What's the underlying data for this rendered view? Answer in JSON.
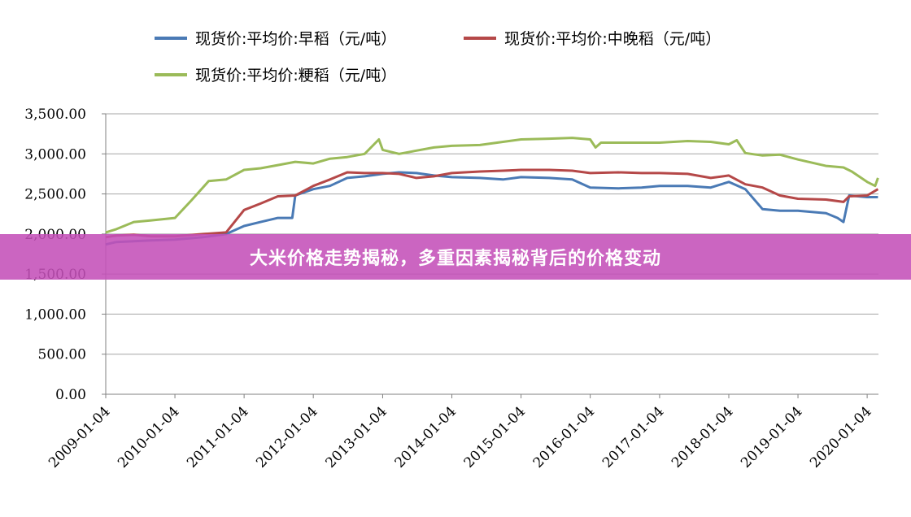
{
  "banner": {
    "text": "大米价格走势揭秘，多重因素揭秘背后的价格变动",
    "color": "#c450b8"
  },
  "chart_data": {
    "type": "line",
    "title": "",
    "xlabel": "",
    "ylabel": "",
    "ylim": [
      0,
      3500
    ],
    "grid": true,
    "legend_position": "top",
    "y_ticks": [
      "0.00",
      "500.00",
      "1,000.00",
      "1,500.00",
      "2,000.00",
      "2,500.00",
      "3,000.00",
      "3,500.00"
    ],
    "x_ticks": [
      "2009-01-04",
      "2010-01-04",
      "2011-01-04",
      "2012-01-04",
      "2013-01-04",
      "2014-01-04",
      "2015-01-04",
      "2016-01-04",
      "2017-01-04",
      "2018-01-04",
      "2019-01-04",
      "2020-01-04"
    ],
    "series": [
      {
        "name": "现货价:平均价:早稻（元/吨）",
        "color": "#4a7ab5",
        "points": [
          [
            "2009-01-04",
            1870
          ],
          [
            "2009-03-01",
            1900
          ],
          [
            "2009-06-01",
            1910
          ],
          [
            "2009-09-01",
            1920
          ],
          [
            "2010-01-04",
            1930
          ],
          [
            "2010-06-01",
            1960
          ],
          [
            "2010-10-01",
            2000
          ],
          [
            "2011-01-04",
            2100
          ],
          [
            "2011-04-01",
            2150
          ],
          [
            "2011-07-01",
            2200
          ],
          [
            "2011-09-15",
            2200
          ],
          [
            "2011-10-01",
            2480
          ],
          [
            "2012-01-04",
            2560
          ],
          [
            "2012-04-01",
            2600
          ],
          [
            "2012-07-01",
            2700
          ],
          [
            "2012-10-01",
            2720
          ],
          [
            "2013-01-04",
            2750
          ],
          [
            "2013-04-01",
            2770
          ],
          [
            "2013-07-01",
            2760
          ],
          [
            "2013-10-01",
            2730
          ],
          [
            "2014-01-04",
            2710
          ],
          [
            "2014-06-01",
            2700
          ],
          [
            "2014-10-01",
            2680
          ],
          [
            "2015-01-04",
            2710
          ],
          [
            "2015-06-01",
            2700
          ],
          [
            "2015-10-01",
            2680
          ],
          [
            "2016-01-04",
            2580
          ],
          [
            "2016-06-01",
            2570
          ],
          [
            "2016-10-01",
            2580
          ],
          [
            "2017-01-04",
            2600
          ],
          [
            "2017-06-01",
            2600
          ],
          [
            "2017-10-01",
            2580
          ],
          [
            "2018-01-04",
            2650
          ],
          [
            "2018-04-01",
            2560
          ],
          [
            "2018-07-01",
            2310
          ],
          [
            "2018-10-01",
            2290
          ],
          [
            "2019-01-04",
            2290
          ],
          [
            "2019-06-01",
            2260
          ],
          [
            "2019-08-01",
            2200
          ],
          [
            "2019-09-01",
            2150
          ],
          [
            "2019-10-01",
            2480
          ],
          [
            "2020-01-04",
            2460
          ],
          [
            "2020-03-01",
            2460
          ]
        ]
      },
      {
        "name": "现货价:平均价:中晚稻（元/吨）",
        "color": "#b54848",
        "points": [
          [
            "2009-01-04",
            1960
          ],
          [
            "2009-03-01",
            1980
          ],
          [
            "2009-06-01",
            1990
          ],
          [
            "2009-09-01",
            1970
          ],
          [
            "2010-01-04",
            1970
          ],
          [
            "2010-06-01",
            2000
          ],
          [
            "2010-10-01",
            2020
          ],
          [
            "2011-01-04",
            2300
          ],
          [
            "2011-04-01",
            2380
          ],
          [
            "2011-07-01",
            2470
          ],
          [
            "2011-10-01",
            2480
          ],
          [
            "2012-01-04",
            2600
          ],
          [
            "2012-04-01",
            2680
          ],
          [
            "2012-07-01",
            2770
          ],
          [
            "2012-10-01",
            2760
          ],
          [
            "2013-01-04",
            2760
          ],
          [
            "2013-04-01",
            2750
          ],
          [
            "2013-07-01",
            2700
          ],
          [
            "2013-10-01",
            2720
          ],
          [
            "2014-01-04",
            2760
          ],
          [
            "2014-06-01",
            2780
          ],
          [
            "2014-10-01",
            2790
          ],
          [
            "2015-01-04",
            2800
          ],
          [
            "2015-06-01",
            2800
          ],
          [
            "2015-10-01",
            2790
          ],
          [
            "2016-01-04",
            2760
          ],
          [
            "2016-06-01",
            2770
          ],
          [
            "2016-10-01",
            2760
          ],
          [
            "2017-01-04",
            2760
          ],
          [
            "2017-06-01",
            2750
          ],
          [
            "2017-10-01",
            2700
          ],
          [
            "2018-01-04",
            2730
          ],
          [
            "2018-04-01",
            2620
          ],
          [
            "2018-07-01",
            2580
          ],
          [
            "2018-10-01",
            2480
          ],
          [
            "2019-01-04",
            2440
          ],
          [
            "2019-06-01",
            2430
          ],
          [
            "2019-09-01",
            2400
          ],
          [
            "2019-10-01",
            2470
          ],
          [
            "2020-01-04",
            2480
          ],
          [
            "2020-03-01",
            2560
          ]
        ]
      },
      {
        "name": "现货价:平均价:粳稻（元/吨）",
        "color": "#9bbb59",
        "points": [
          [
            "2009-01-04",
            2020
          ],
          [
            "2009-03-01",
            2060
          ],
          [
            "2009-06-01",
            2150
          ],
          [
            "2009-09-01",
            2170
          ],
          [
            "2010-01-04",
            2200
          ],
          [
            "2010-04-01",
            2420
          ],
          [
            "2010-07-01",
            2660
          ],
          [
            "2010-10-01",
            2680
          ],
          [
            "2011-01-04",
            2800
          ],
          [
            "2011-04-01",
            2820
          ],
          [
            "2011-07-01",
            2860
          ],
          [
            "2011-10-01",
            2900
          ],
          [
            "2012-01-04",
            2880
          ],
          [
            "2012-04-01",
            2940
          ],
          [
            "2012-07-01",
            2960
          ],
          [
            "2012-10-01",
            3000
          ],
          [
            "2012-12-15",
            3180
          ],
          [
            "2013-01-04",
            3050
          ],
          [
            "2013-04-01",
            3000
          ],
          [
            "2013-07-01",
            3040
          ],
          [
            "2013-10-01",
            3080
          ],
          [
            "2014-01-04",
            3100
          ],
          [
            "2014-06-01",
            3110
          ],
          [
            "2014-10-01",
            3150
          ],
          [
            "2015-01-04",
            3180
          ],
          [
            "2015-06-01",
            3190
          ],
          [
            "2015-10-01",
            3200
          ],
          [
            "2016-01-04",
            3180
          ],
          [
            "2016-02-01",
            3080
          ],
          [
            "2016-03-01",
            3140
          ],
          [
            "2016-10-01",
            3140
          ],
          [
            "2017-01-04",
            3140
          ],
          [
            "2017-06-01",
            3160
          ],
          [
            "2017-10-01",
            3150
          ],
          [
            "2018-01-04",
            3120
          ],
          [
            "2018-02-15",
            3170
          ],
          [
            "2018-04-01",
            3010
          ],
          [
            "2018-07-01",
            2980
          ],
          [
            "2018-10-01",
            2990
          ],
          [
            "2019-01-04",
            2930
          ],
          [
            "2019-06-01",
            2850
          ],
          [
            "2019-09-01",
            2830
          ],
          [
            "2019-10-15",
            2780
          ],
          [
            "2020-01-04",
            2650
          ],
          [
            "2020-02-15",
            2600
          ],
          [
            "2020-03-01",
            2700
          ]
        ]
      }
    ]
  }
}
